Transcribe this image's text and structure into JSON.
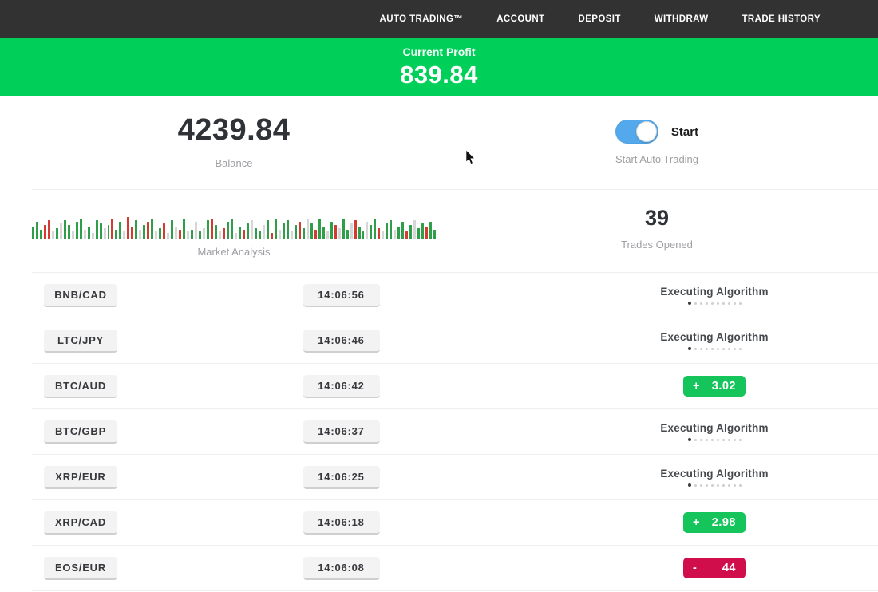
{
  "nav": {
    "items": [
      {
        "label": "AUTO TRADING™"
      },
      {
        "label": "ACCOUNT"
      },
      {
        "label": "DEPOSIT"
      },
      {
        "label": "WITHDRAW"
      },
      {
        "label": "TRADE HISTORY"
      }
    ]
  },
  "banner": {
    "label": "Current Profit",
    "value": "839.84"
  },
  "stats": {
    "balance": {
      "value": "4239.84",
      "label": "Balance"
    },
    "auto_trading": {
      "toggle_label": "Start",
      "label": "Start Auto Trading",
      "enabled": true
    },
    "market_analysis": {
      "label": "Market Analysis"
    },
    "trades_opened": {
      "value": "39",
      "label": "Trades Opened"
    }
  },
  "chart_data": {
    "type": "bar",
    "title": "Market Analysis",
    "legend": false,
    "axes": false,
    "note": "decorative ticker of green/red/neutral volume bars, heights in px",
    "colors": {
      "g": "#2f9e48",
      "r": "#d23a32",
      "l": "#d6d6d6"
    },
    "bars": [
      "g16",
      "g22",
      "g12",
      "r18",
      "r24",
      "l10",
      "g14",
      "l20",
      "g24",
      "g18",
      "l10",
      "g22",
      "g26",
      "l12",
      "g16",
      "l8",
      "g24",
      "g20",
      "l14",
      "g18",
      "r26",
      "g12",
      "g22",
      "l10",
      "r28",
      "r16",
      "g24",
      "l12",
      "g18",
      "r22",
      "g26",
      "l10",
      "g14",
      "r20",
      "l8",
      "g24",
      "l16",
      "r12",
      "g26",
      "l10",
      "g12",
      "l22",
      "g10",
      "l14",
      "g24",
      "r26",
      "g18",
      "l10",
      "r14",
      "g22",
      "g26",
      "l8",
      "g16",
      "r12",
      "g20",
      "l24",
      "g14",
      "g10",
      "l18",
      "g24",
      "r8",
      "g26",
      "l12",
      "g20",
      "g24",
      "l10",
      "g18",
      "r22",
      "g14",
      "l26",
      "g20",
      "r12",
      "g26",
      "g16",
      "l10",
      "g22",
      "r18",
      "l14",
      "g26",
      "g12",
      "l20",
      "r24",
      "g16",
      "g10",
      "l22",
      "g18",
      "g26",
      "r14",
      "l10",
      "g20",
      "g24",
      "l12",
      "g16",
      "g22",
      "r10",
      "g18",
      "l24",
      "g14",
      "g20",
      "r16",
      "g22",
      "g12"
    ]
  },
  "trades": [
    {
      "pair": "BNB/CAD",
      "time": "14:06:56",
      "status": "executing",
      "status_label": "Executing Algorithm"
    },
    {
      "pair": "LTC/JPY",
      "time": "14:06:46",
      "status": "executing",
      "status_label": "Executing Algorithm"
    },
    {
      "pair": "BTC/AUD",
      "time": "14:06:42",
      "status": "result",
      "sign": "+",
      "value": "3.02",
      "result_type": "gain"
    },
    {
      "pair": "BTC/GBP",
      "time": "14:06:37",
      "status": "executing",
      "status_label": "Executing Algorithm"
    },
    {
      "pair": "XRP/EUR",
      "time": "14:06:25",
      "status": "executing",
      "status_label": "Executing Algorithm"
    },
    {
      "pair": "XRP/CAD",
      "time": "14:06:18",
      "status": "result",
      "sign": "+",
      "value": "2.98",
      "result_type": "gain"
    },
    {
      "pair": "EOS/EUR",
      "time": "14:06:08",
      "status": "result",
      "sign": "-",
      "value": "44",
      "result_type": "loss"
    }
  ],
  "colors": {
    "nav_bg": "#323233",
    "banner_green": "#00d05a",
    "badge_green": "#15c55b",
    "badge_red": "#d00e4b",
    "toggle_blue": "#53a9eb"
  }
}
